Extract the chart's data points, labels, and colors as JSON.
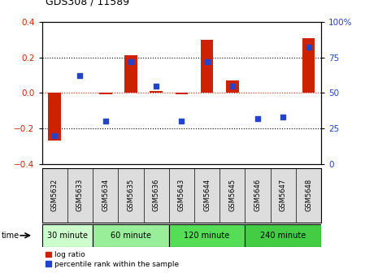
{
  "title": "GDS308 / 11589",
  "samples": [
    "GSM5632",
    "GSM5633",
    "GSM5634",
    "GSM5635",
    "GSM5636",
    "GSM5643",
    "GSM5644",
    "GSM5645",
    "GSM5646",
    "GSM5647",
    "GSM5648"
  ],
  "log_ratio": [
    -0.27,
    0.0,
    -0.01,
    0.21,
    0.01,
    -0.01,
    0.3,
    0.07,
    0.0,
    0.0,
    0.31
  ],
  "percentile": [
    20,
    62,
    30,
    72,
    55,
    30,
    72,
    55,
    32,
    33,
    82
  ],
  "groups": [
    {
      "label": "30 minute",
      "start": 0,
      "end": 2,
      "color": "#ccffcc"
    },
    {
      "label": "60 minute",
      "start": 2,
      "end": 5,
      "color": "#99ee99"
    },
    {
      "label": "120 minute",
      "start": 5,
      "end": 8,
      "color": "#55dd55"
    },
    {
      "label": "240 minute",
      "start": 8,
      "end": 11,
      "color": "#44cc44"
    }
  ],
  "bar_color_red": "#cc2200",
  "bar_color_blue": "#2244cc",
  "ylim": [
    -0.4,
    0.4
  ],
  "y2lim": [
    0,
    100
  ],
  "yticks": [
    -0.4,
    -0.2,
    0.0,
    0.2,
    0.4
  ],
  "y2ticks": [
    0,
    25,
    50,
    75,
    100
  ],
  "dotted_lines": [
    -0.2,
    0.0,
    0.2
  ],
  "bg_color": "#dddddd"
}
